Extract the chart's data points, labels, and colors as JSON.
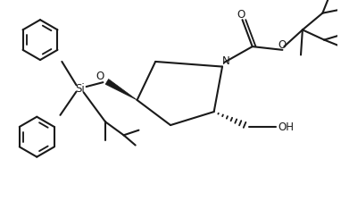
{
  "bg_color": "#ffffff",
  "line_color": "#1a1a1a",
  "line_width": 1.5,
  "fig_width": 3.82,
  "fig_height": 2.26,
  "dpi": 100,
  "xlim": [
    0,
    10.0
  ],
  "ylim": [
    0.5,
    6.5
  ]
}
